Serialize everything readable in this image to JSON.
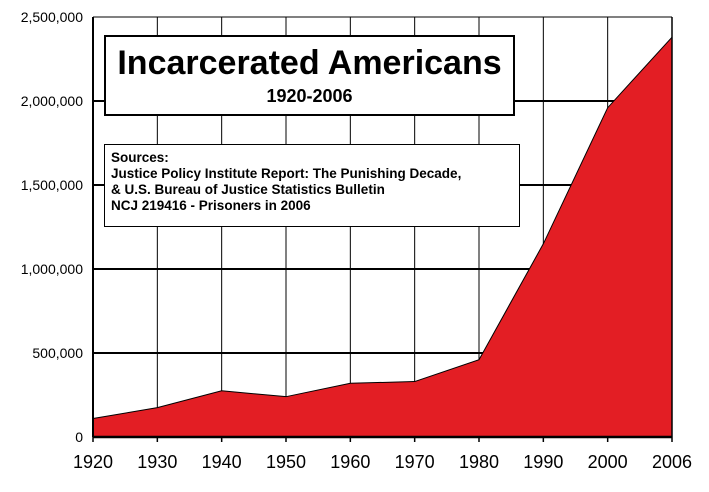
{
  "chart_data": {
    "type": "area",
    "title": "Incarcerated Americans",
    "subtitle": "1920-2006",
    "x": [
      1920,
      1930,
      1940,
      1950,
      1960,
      1970,
      1980,
      1990,
      2000,
      2006
    ],
    "series": [
      {
        "values": [
          110000,
          175000,
          275000,
          240000,
          320000,
          330000,
          460000,
          1150000,
          1960000,
          2380000
        ]
      }
    ],
    "xticks": [
      "1920",
      "1930",
      "1940",
      "1950",
      "1960",
      "1970",
      "1980",
      "1990",
      "2000",
      "2006"
    ],
    "yticks": [
      "0",
      "500,000",
      "1,000,000",
      "1,500,000",
      "2,000,000",
      "2,500,000"
    ],
    "ytick_values": [
      0,
      500000,
      1000000,
      1500000,
      2000000,
      2500000
    ],
    "ylim": [
      0,
      2500000
    ],
    "grid": true,
    "fill_color": "#e31e24",
    "sources": [
      "Sources:",
      "Justice Policy Institute Report: The Punishing Decade,",
      "& U.S. Bureau of Justice Statistics Bulletin",
      "NCJ 219416 - Prisoners in 2006"
    ]
  }
}
